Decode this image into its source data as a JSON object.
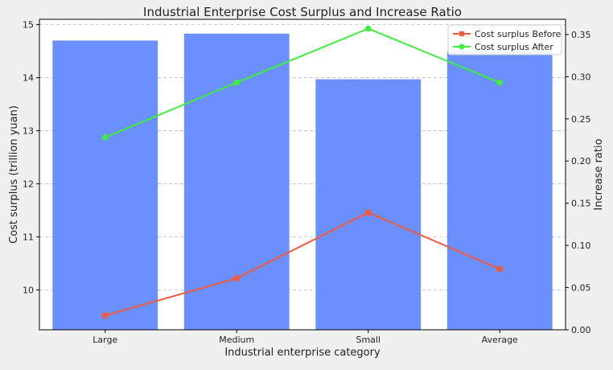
{
  "chart_data": {
    "type": "bar",
    "title": "Industrial Enterprise Cost Surplus and Increase Ratio",
    "xlabel": "Industrial enterprise category",
    "ylabel_left": "Cost surplus (trillion yuan)",
    "ylabel_right": "Increase ratio",
    "categories": [
      "Large",
      "Medium",
      "Small",
      "Average"
    ],
    "bars": {
      "axis": "left",
      "values": [
        14.7,
        14.83,
        13.97,
        14.5
      ],
      "color": "#6b8ffd"
    },
    "series": [
      {
        "name": "Cost surplus Before",
        "axis": "right",
        "marker": "square",
        "values": [
          0.017,
          0.061,
          0.139,
          0.072
        ],
        "color": "#f15a3a"
      },
      {
        "name": "Cost surplus After",
        "axis": "right",
        "marker": "circle",
        "values": [
          0.228,
          0.293,
          0.357,
          0.293
        ],
        "color": "#3cf03c"
      }
    ],
    "ylim_left": [
      9.25,
      15.1
    ],
    "ylim_right": [
      0.0,
      0.368
    ],
    "yticks_left": [
      "10",
      "11",
      "12",
      "13",
      "14",
      "15"
    ],
    "yticks_right": [
      "0.00",
      "0.05",
      "0.10",
      "0.15",
      "0.20",
      "0.25",
      "0.30",
      "0.35"
    ],
    "grid": true,
    "legend_position": "top-right"
  }
}
